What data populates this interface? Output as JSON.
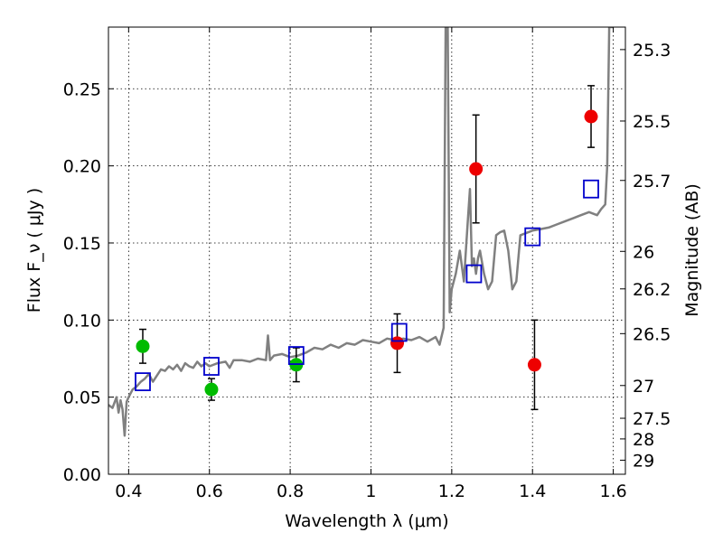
{
  "chart_data": {
    "type": "scatter",
    "xlabel": "Wavelength  λ (μm)",
    "ylabel": "Flux  F_ν  ( μJy )",
    "ylabel_right": "Magnitude (AB)",
    "xlim": [
      0.35,
      1.63
    ],
    "ylim": [
      0.0,
      0.29
    ],
    "grid": true,
    "x_ticks": [
      0.4,
      0.6,
      0.8,
      1.0,
      1.2,
      1.4,
      1.6
    ],
    "x_tick_labels": [
      "0.4",
      "0.6",
      "0.8",
      "1",
      "1.2",
      "1.4",
      "1.6"
    ],
    "y_ticks": [
      0.0,
      0.05,
      0.1,
      0.15,
      0.2,
      0.25
    ],
    "y_tick_labels": [
      "0.00",
      "0.05",
      "0.10",
      "0.15",
      "0.20",
      "0.25"
    ],
    "right_ticks": [
      {
        "label": "25.3",
        "mag": 25.3
      },
      {
        "label": "25.5",
        "mag": 25.5
      },
      {
        "label": "25.7",
        "mag": 25.7
      },
      {
        "label": "26",
        "mag": 26.0
      },
      {
        "label": "26.2",
        "mag": 26.2
      },
      {
        "label": "26.5",
        "mag": 26.5
      },
      {
        "label": "27",
        "mag": 27.0
      },
      {
        "label": "27.5",
        "mag": 27.5
      },
      {
        "label": "28",
        "mag": 28.0
      },
      {
        "label": "29",
        "mag": 29.0
      }
    ],
    "colors": {
      "model": "#808080",
      "green": "#00bb00",
      "red": "#ee0000",
      "blue": "#0000cc"
    },
    "series": [
      {
        "kind": "model_spectrum",
        "x": [
          0.35,
          0.36,
          0.37,
          0.375,
          0.38,
          0.385,
          0.39,
          0.395,
          0.4,
          0.41,
          0.42,
          0.43,
          0.44,
          0.45,
          0.46,
          0.47,
          0.48,
          0.49,
          0.5,
          0.51,
          0.52,
          0.53,
          0.54,
          0.55,
          0.56,
          0.57,
          0.58,
          0.59,
          0.6,
          0.62,
          0.64,
          0.65,
          0.66,
          0.68,
          0.7,
          0.72,
          0.74,
          0.745,
          0.75,
          0.76,
          0.78,
          0.8,
          0.82,
          0.84,
          0.86,
          0.88,
          0.9,
          0.92,
          0.94,
          0.96,
          0.98,
          1.0,
          1.02,
          1.04,
          1.06,
          1.08,
          1.1,
          1.12,
          1.14,
          1.16,
          1.17,
          1.18,
          1.185,
          1.19,
          1.195,
          1.2,
          1.21,
          1.22,
          1.23,
          1.24,
          1.245,
          1.25,
          1.255,
          1.26,
          1.265,
          1.27,
          1.28,
          1.29,
          1.3,
          1.31,
          1.32,
          1.33,
          1.34,
          1.35,
          1.36,
          1.37,
          1.38,
          1.4,
          1.42,
          1.44,
          1.46,
          1.48,
          1.5,
          1.52,
          1.54,
          1.56,
          1.57,
          1.58,
          1.585,
          1.59,
          1.6
        ],
        "y": [
          0.045,
          0.043,
          0.05,
          0.04,
          0.048,
          0.042,
          0.025,
          0.047,
          0.05,
          0.055,
          0.057,
          0.06,
          0.062,
          0.065,
          0.06,
          0.064,
          0.068,
          0.067,
          0.07,
          0.068,
          0.071,
          0.067,
          0.072,
          0.07,
          0.069,
          0.073,
          0.07,
          0.072,
          0.07,
          0.072,
          0.073,
          0.069,
          0.074,
          0.074,
          0.073,
          0.075,
          0.074,
          0.09,
          0.074,
          0.077,
          0.078,
          0.076,
          0.077,
          0.079,
          0.082,
          0.081,
          0.084,
          0.082,
          0.085,
          0.084,
          0.087,
          0.086,
          0.085,
          0.088,
          0.087,
          0.088,
          0.087,
          0.089,
          0.086,
          0.089,
          0.084,
          0.095,
          0.29,
          0.29,
          0.105,
          0.12,
          0.13,
          0.145,
          0.125,
          0.165,
          0.185,
          0.135,
          0.14,
          0.13,
          0.14,
          0.145,
          0.13,
          0.12,
          0.125,
          0.155,
          0.157,
          0.158,
          0.145,
          0.12,
          0.125,
          0.155,
          0.156,
          0.158,
          0.159,
          0.16,
          0.162,
          0.164,
          0.166,
          0.168,
          0.17,
          0.168,
          0.172,
          0.175,
          0.2,
          0.29,
          0.29
        ]
      },
      {
        "kind": "filled_circle",
        "color": "green",
        "points": [
          {
            "x": 0.435,
            "y": 0.083,
            "err_lo": 0.072,
            "err_hi": 0.094
          },
          {
            "x": 0.605,
            "y": 0.055,
            "err_lo": 0.048,
            "err_hi": 0.062
          },
          {
            "x": 0.815,
            "y": 0.071,
            "err_lo": 0.06,
            "err_hi": 0.082
          }
        ]
      },
      {
        "kind": "filled_circle",
        "color": "red",
        "points": [
          {
            "x": 1.065,
            "y": 0.085,
            "err_lo": 0.066,
            "err_hi": 0.104
          },
          {
            "x": 1.26,
            "y": 0.198,
            "err_lo": 0.163,
            "err_hi": 0.233
          },
          {
            "x": 1.405,
            "y": 0.071,
            "err_lo": 0.042,
            "err_hi": 0.1
          },
          {
            "x": 1.545,
            "y": 0.232,
            "err_lo": 0.212,
            "err_hi": 0.252
          }
        ]
      },
      {
        "kind": "open_square",
        "color": "blue",
        "points": [
          {
            "x": 0.435,
            "y": 0.06
          },
          {
            "x": 0.605,
            "y": 0.07
          },
          {
            "x": 0.815,
            "y": 0.077
          },
          {
            "x": 1.07,
            "y": 0.092
          },
          {
            "x": 1.255,
            "y": 0.13
          },
          {
            "x": 1.4,
            "y": 0.154
          },
          {
            "x": 1.545,
            "y": 0.185
          }
        ]
      }
    ]
  }
}
